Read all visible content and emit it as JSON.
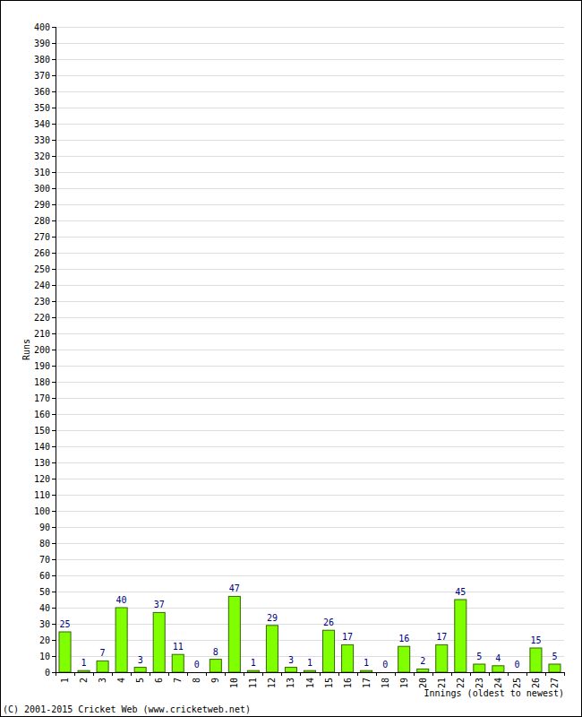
{
  "chart_data": {
    "type": "bar",
    "y_label": "Runs",
    "x_label": "Innings (oldest to newest)",
    "source": "(C) 2001-2015 Cricket Web (www.cricketweb.net)",
    "categories": [
      "1",
      "2",
      "3",
      "4",
      "5",
      "6",
      "7",
      "8",
      "9",
      "10",
      "11",
      "12",
      "13",
      "14",
      "15",
      "16",
      "17",
      "18",
      "19",
      "20",
      "21",
      "22",
      "23",
      "24",
      "25",
      "26",
      "27"
    ],
    "values": [
      25,
      1,
      7,
      40,
      3,
      37,
      11,
      0,
      8,
      47,
      1,
      29,
      3,
      1,
      26,
      17,
      1,
      0,
      16,
      2,
      17,
      45,
      5,
      4,
      0,
      15,
      5
    ],
    "color": "#80ff00",
    "ylim": [
      0,
      400
    ],
    "yticks": [
      0,
      10,
      20,
      30,
      40,
      50,
      60,
      70,
      80,
      90,
      100,
      110,
      120,
      130,
      140,
      150,
      160,
      170,
      180,
      190,
      200,
      210,
      220,
      230,
      240,
      250,
      260,
      270,
      280,
      290,
      300,
      310,
      320,
      330,
      340,
      350,
      360,
      370,
      380,
      390,
      400
    ],
    "grid": true,
    "data_labels": true
  }
}
